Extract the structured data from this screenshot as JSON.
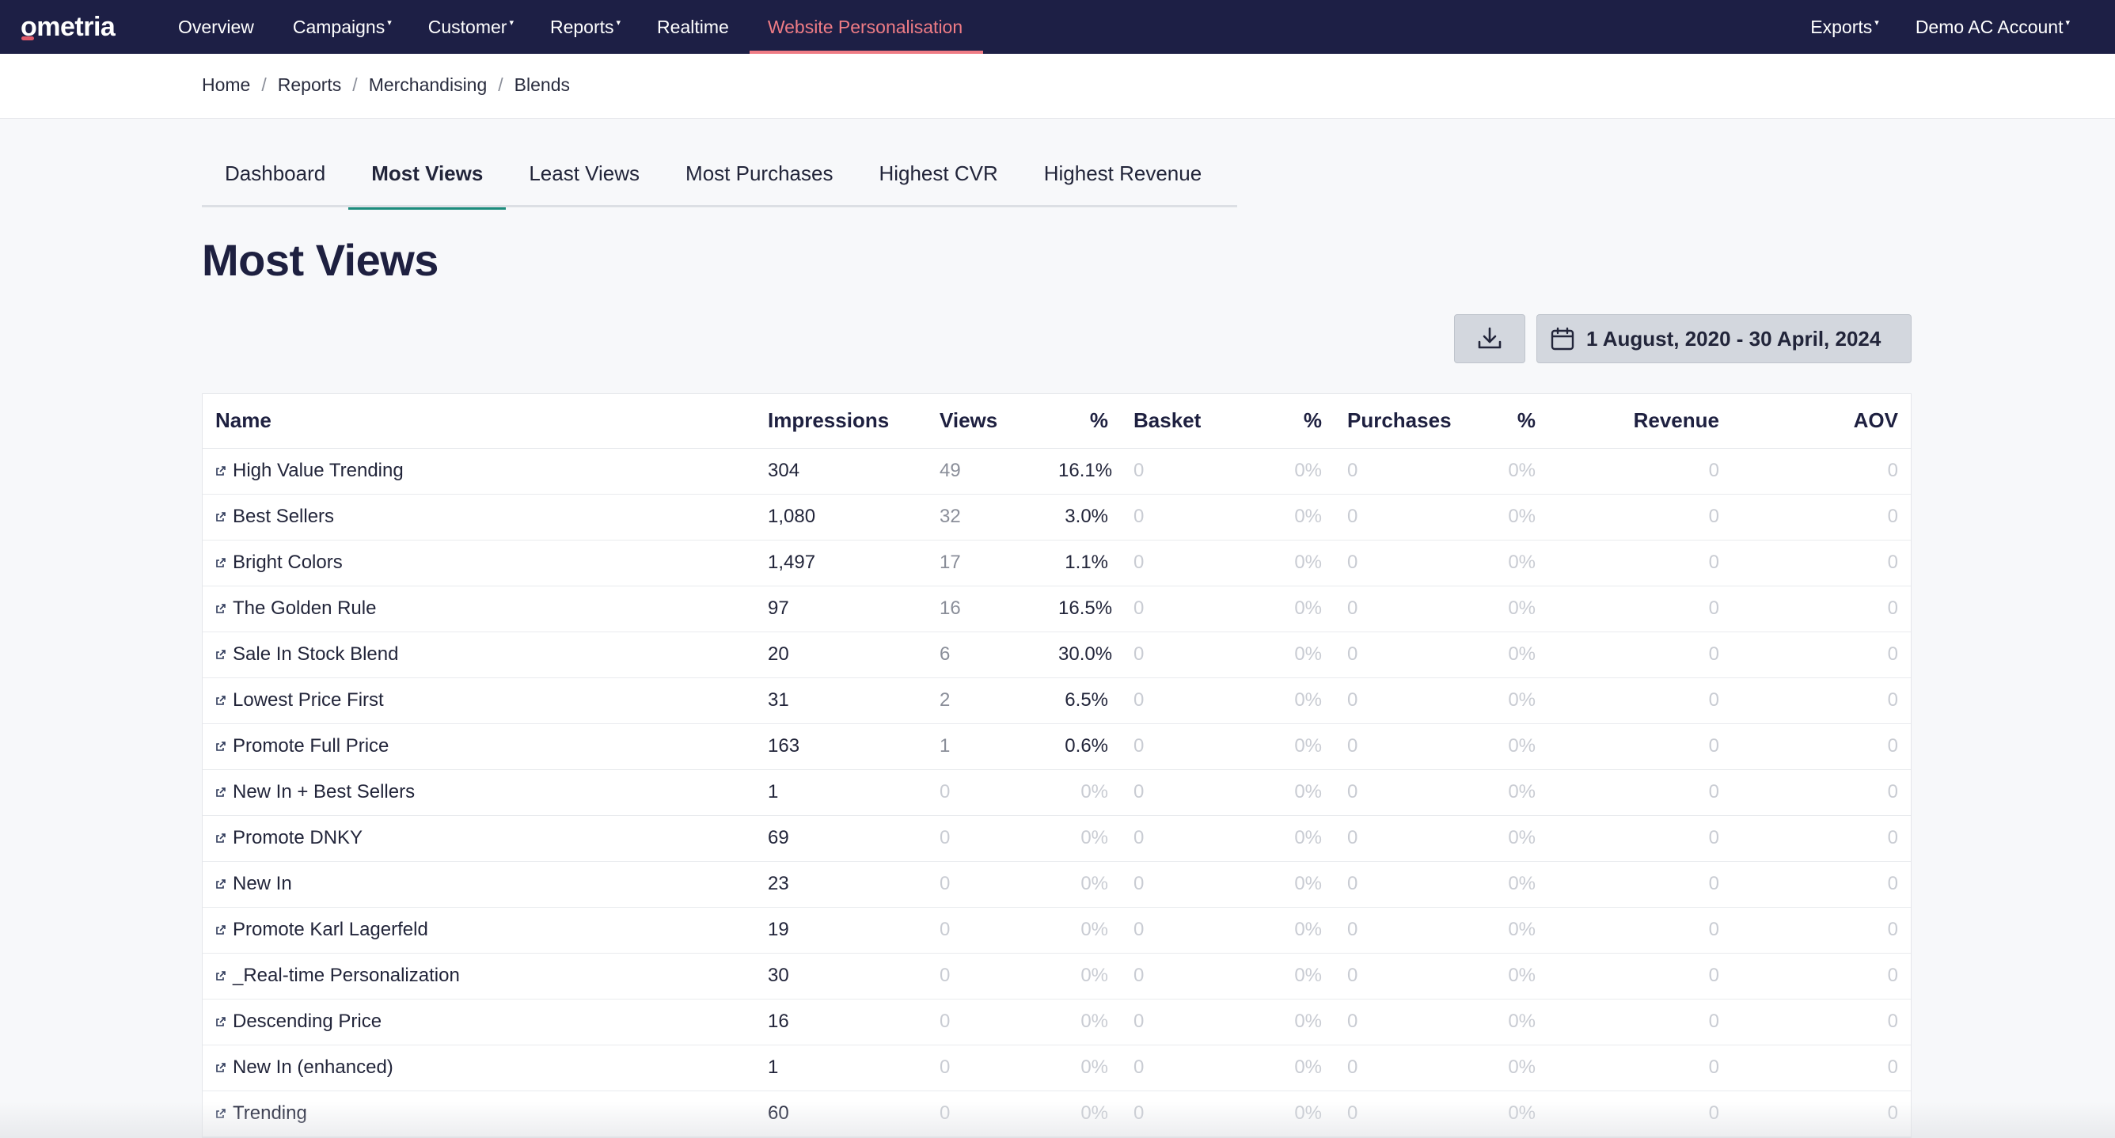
{
  "nav": {
    "logo": "ometria",
    "items": [
      {
        "label": "Overview",
        "caret": ""
      },
      {
        "label": "Campaigns",
        "caret": "▾"
      },
      {
        "label": "Customer",
        "caret": "▾"
      },
      {
        "label": "Reports",
        "caret": "▾"
      },
      {
        "label": "Realtime",
        "caret": ""
      },
      {
        "label": "Website Personalisation",
        "caret": ""
      }
    ],
    "right": [
      {
        "label": "Exports",
        "caret": "▾"
      },
      {
        "label": "Demo AC Account",
        "caret": "▾"
      }
    ],
    "accent_color": "#ef7c85",
    "bg_color": "#1d1f45"
  },
  "breadcrumb": [
    "Home",
    "Reports",
    "Merchandising",
    "Blends"
  ],
  "breadcrumb_sep": "/",
  "tabs": [
    "Dashboard",
    "Most Views",
    "Least Views",
    "Most Purchases",
    "Highest CVR",
    "Highest Revenue"
  ],
  "active_tab": "Most Views",
  "page_title": "Most Views",
  "actions": {
    "download_icon": "download-icon",
    "date_icon": "calendar-icon",
    "date_range": "1 August, 2020 - 30 April, 2024"
  },
  "table": {
    "headers": {
      "name": "Name",
      "impressions": "Impressions",
      "views": "Views",
      "views_pct": "%",
      "basket": "Basket",
      "basket_pct": "%",
      "purchases": "Purchases",
      "purchases_pct": "%",
      "revenue": "Revenue",
      "aov": "AOV"
    },
    "sort_icon": "sort-desc-icon",
    "rows": [
      {
        "name": "High Value Trending",
        "impressions": "304",
        "views": "49",
        "views_pct": "16.1%",
        "basket": "0",
        "basket_pct": "0%",
        "purchases": "0",
        "purchases_pct": "0%",
        "revenue": "0",
        "aov": "0"
      },
      {
        "name": "Best Sellers",
        "impressions": "1,080",
        "views": "32",
        "views_pct": "3.0%",
        "basket": "0",
        "basket_pct": "0%",
        "purchases": "0",
        "purchases_pct": "0%",
        "revenue": "0",
        "aov": "0"
      },
      {
        "name": "Bright Colors",
        "impressions": "1,497",
        "views": "17",
        "views_pct": "1.1%",
        "basket": "0",
        "basket_pct": "0%",
        "purchases": "0",
        "purchases_pct": "0%",
        "revenue": "0",
        "aov": "0"
      },
      {
        "name": "The Golden Rule",
        "impressions": "97",
        "views": "16",
        "views_pct": "16.5%",
        "basket": "0",
        "basket_pct": "0%",
        "purchases": "0",
        "purchases_pct": "0%",
        "revenue": "0",
        "aov": "0"
      },
      {
        "name": "Sale In Stock Blend",
        "impressions": "20",
        "views": "6",
        "views_pct": "30.0%",
        "basket": "0",
        "basket_pct": "0%",
        "purchases": "0",
        "purchases_pct": "0%",
        "revenue": "0",
        "aov": "0"
      },
      {
        "name": "Lowest Price First",
        "impressions": "31",
        "views": "2",
        "views_pct": "6.5%",
        "basket": "0",
        "basket_pct": "0%",
        "purchases": "0",
        "purchases_pct": "0%",
        "revenue": "0",
        "aov": "0"
      },
      {
        "name": "Promote Full Price",
        "impressions": "163",
        "views": "1",
        "views_pct": "0.6%",
        "basket": "0",
        "basket_pct": "0%",
        "purchases": "0",
        "purchases_pct": "0%",
        "revenue": "0",
        "aov": "0"
      },
      {
        "name": "New In + Best Sellers",
        "impressions": "1",
        "views": "0",
        "views_pct": "0%",
        "basket": "0",
        "basket_pct": "0%",
        "purchases": "0",
        "purchases_pct": "0%",
        "revenue": "0",
        "aov": "0"
      },
      {
        "name": "Promote DNKY",
        "impressions": "69",
        "views": "0",
        "views_pct": "0%",
        "basket": "0",
        "basket_pct": "0%",
        "purchases": "0",
        "purchases_pct": "0%",
        "revenue": "0",
        "aov": "0"
      },
      {
        "name": "New In",
        "impressions": "23",
        "views": "0",
        "views_pct": "0%",
        "basket": "0",
        "basket_pct": "0%",
        "purchases": "0",
        "purchases_pct": "0%",
        "revenue": "0",
        "aov": "0"
      },
      {
        "name": "Promote Karl Lagerfeld",
        "impressions": "19",
        "views": "0",
        "views_pct": "0%",
        "basket": "0",
        "basket_pct": "0%",
        "purchases": "0",
        "purchases_pct": "0%",
        "revenue": "0",
        "aov": "0"
      },
      {
        "name": "_Real-time Personalization",
        "impressions": "30",
        "views": "0",
        "views_pct": "0%",
        "basket": "0",
        "basket_pct": "0%",
        "purchases": "0",
        "purchases_pct": "0%",
        "revenue": "0",
        "aov": "0"
      },
      {
        "name": "Descending Price",
        "impressions": "16",
        "views": "0",
        "views_pct": "0%",
        "basket": "0",
        "basket_pct": "0%",
        "purchases": "0",
        "purchases_pct": "0%",
        "revenue": "0",
        "aov": "0"
      },
      {
        "name": "New In (enhanced)",
        "impressions": "1",
        "views": "0",
        "views_pct": "0%",
        "basket": "0",
        "basket_pct": "0%",
        "purchases": "0",
        "purchases_pct": "0%",
        "revenue": "0",
        "aov": "0"
      },
      {
        "name": "Trending",
        "impressions": "60",
        "views": "0",
        "views_pct": "0%",
        "basket": "0",
        "basket_pct": "0%",
        "purchases": "0",
        "purchases_pct": "0%",
        "revenue": "0",
        "aov": "0"
      }
    ]
  }
}
